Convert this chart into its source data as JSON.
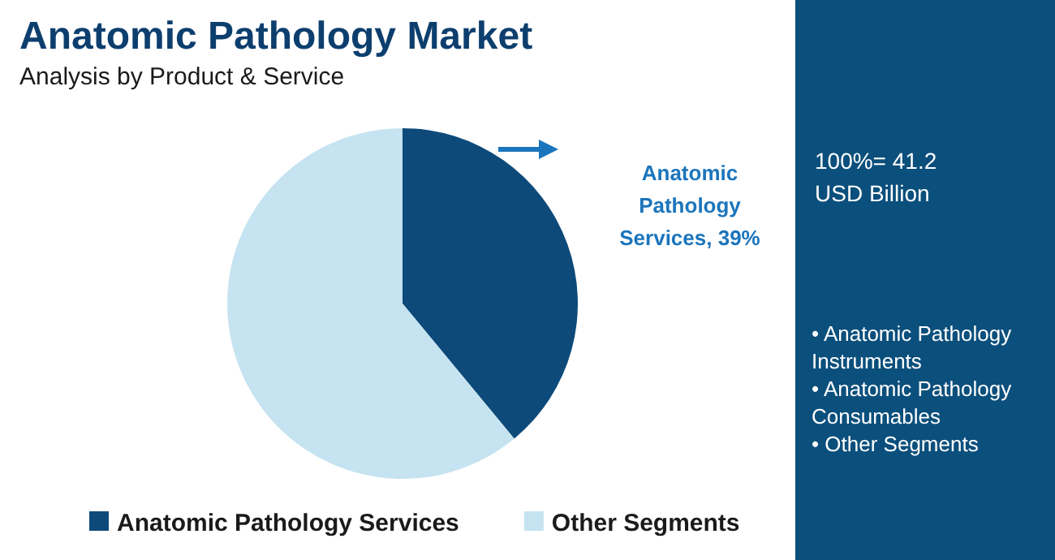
{
  "chart_data": {
    "type": "pie",
    "title": "Anatomic Pathology Market",
    "subtitle": "Analysis by Product & Service",
    "categories": [
      "Anatomic Pathology Services",
      "Other Segments"
    ],
    "values": [
      39,
      61
    ],
    "colors": [
      "#0d4a7a",
      "#c5e3f0"
    ],
    "value_labels": [
      "Anatomic Pathology Services, 39%",
      null
    ],
    "legend": "bottom",
    "annotations": [
      "100%= 41.2 USD Billion",
      "• Anatomic Pathology Instruments",
      "• Anatomic Pathology Consumables",
      "• Other Segments"
    ]
  }
}
